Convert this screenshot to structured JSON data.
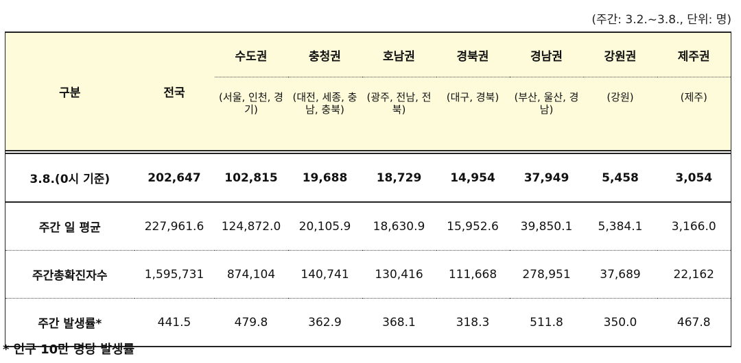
{
  "unit_note": "(주간: 3.2.~3.8., 단위: 명)",
  "header": {
    "gubun": "구분",
    "jeonguk": "전국",
    "regions": [
      {
        "name": "수도권",
        "sub": "(서울, 인천, 경기)"
      },
      {
        "name": "충청권",
        "sub": "(대전, 세종, 충남, 충북)"
      },
      {
        "name": "호남권",
        "sub": "(광주, 전남, 전북)"
      },
      {
        "name": "경북권",
        "sub": "(대구, 경북)"
      },
      {
        "name": "경남권",
        "sub": "(부산, 울산, 경남)"
      },
      {
        "name": "강원권",
        "sub": "(강원)"
      },
      {
        "name": "제주권",
        "sub": "(제주)"
      }
    ]
  },
  "rows": [
    {
      "label": "3.8.(0시 기준)",
      "values": [
        "202,647",
        "102,815",
        "19,688",
        "18,729",
        "14,954",
        "37,949",
        "5,458",
        "3,054"
      ]
    },
    {
      "label": "주간 일 평균",
      "values": [
        "227,961.6",
        "124,872.0",
        "20,105.9",
        "18,630.9",
        "15,952.6",
        "39,850.1",
        "5,384.1",
        "3,166.0"
      ]
    },
    {
      "label": "주간총확진자수",
      "values": [
        "1,595,731",
        "874,104",
        "140,741",
        "130,416",
        "111,668",
        "278,951",
        "37,689",
        "22,162"
      ]
    },
    {
      "label": "주간 발생률*",
      "values": [
        "441.5",
        "479.8",
        "362.9",
        "368.1",
        "318.3",
        "511.8",
        "350.0",
        "467.8"
      ]
    }
  ],
  "footnote": "* 인구 10만 명당 발생률"
}
